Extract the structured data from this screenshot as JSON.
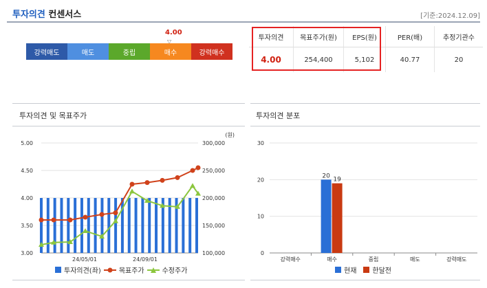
{
  "header": {
    "title_part1": "투자의견",
    "title_part2": "컨센서스",
    "date": "[기준:2024.12.09]"
  },
  "opinion_scale": {
    "score": "4.00",
    "segments": [
      {
        "label": "강력매도",
        "color": "#2e5aa8"
      },
      {
        "label": "매도",
        "color": "#4f8fe0"
      },
      {
        "label": "중립",
        "color": "#5ba82b"
      },
      {
        "label": "매수",
        "color": "#f6881f"
      },
      {
        "label": "강력매수",
        "color": "#d0311f"
      }
    ]
  },
  "metrics": {
    "headers": [
      "투자의견",
      "목표주가(원)",
      "EPS(원)",
      "PER(배)",
      "추정기관수"
    ],
    "values": [
      "4.00",
      "254,400",
      "5,102",
      "40.77",
      "20"
    ]
  },
  "chart_left": {
    "title": "투자의견 및 목표주가",
    "right_unit": "(원)",
    "left_ticks": [
      "5.00",
      "4.50",
      "4.00",
      "3.50",
      "3.00"
    ],
    "right_ticks": [
      "300,000",
      "250,000",
      "200,000",
      "150,000",
      "100,000"
    ],
    "x_labels": [
      "24/05/01",
      "24/09/01"
    ],
    "legend": [
      "투자의견(좌)",
      "목표주가",
      "수정주가"
    ]
  },
  "chart_right": {
    "title": "투자의견 분포",
    "y_ticks": [
      "30",
      "20",
      "10",
      "0"
    ],
    "categories": [
      "강력매수",
      "매수",
      "중립",
      "매도",
      "강력매도"
    ],
    "legend": [
      "현재",
      "한달전"
    ]
  },
  "chart_data": [
    {
      "type": "line",
      "title": "투자의견 및 목표주가",
      "x_labels": [
        "24/05/01",
        "24/09/01"
      ],
      "ylim_left": [
        3.0,
        5.0
      ],
      "ylim_right": [
        100000,
        300000
      ],
      "series": [
        {
          "name": "투자의견(좌)",
          "type": "bar",
          "color": "#2a6fd6",
          "values": [
            4.0,
            4.0,
            4.0,
            4.0,
            4.0,
            4.0,
            4.0,
            4.0,
            4.0,
            4.0,
            4.0,
            4.0,
            4.0,
            4.0,
            4.0,
            4.0,
            4.0,
            4.0,
            4.0,
            4.0,
            4.0,
            4.0,
            4.0,
            4.0
          ]
        },
        {
          "name": "목표주가",
          "color": "#d0421b",
          "values": [
            160000,
            160000,
            160000,
            165000,
            170000,
            173000,
            225000,
            228000,
            232000,
            237000,
            250000,
            255000
          ]
        },
        {
          "name": "수정주가",
          "color": "#8cc63e",
          "values": [
            115000,
            119000,
            120000,
            140000,
            130000,
            158000,
            212000,
            195000,
            186000,
            184000,
            222000,
            208000
          ]
        }
      ]
    },
    {
      "type": "bar",
      "title": "투자의견 분포",
      "categories": [
        "강력매수",
        "매수",
        "중립",
        "매도",
        "강력매도"
      ],
      "ylim": [
        0,
        30
      ],
      "series": [
        {
          "name": "현재",
          "color": "#2a6fd6",
          "values": [
            0,
            20,
            0,
            0,
            0
          ]
        },
        {
          "name": "한달전",
          "color": "#c93a12",
          "values": [
            0,
            19,
            0,
            0,
            0
          ]
        }
      ],
      "data_labels": [
        "20",
        "19"
      ]
    }
  ]
}
